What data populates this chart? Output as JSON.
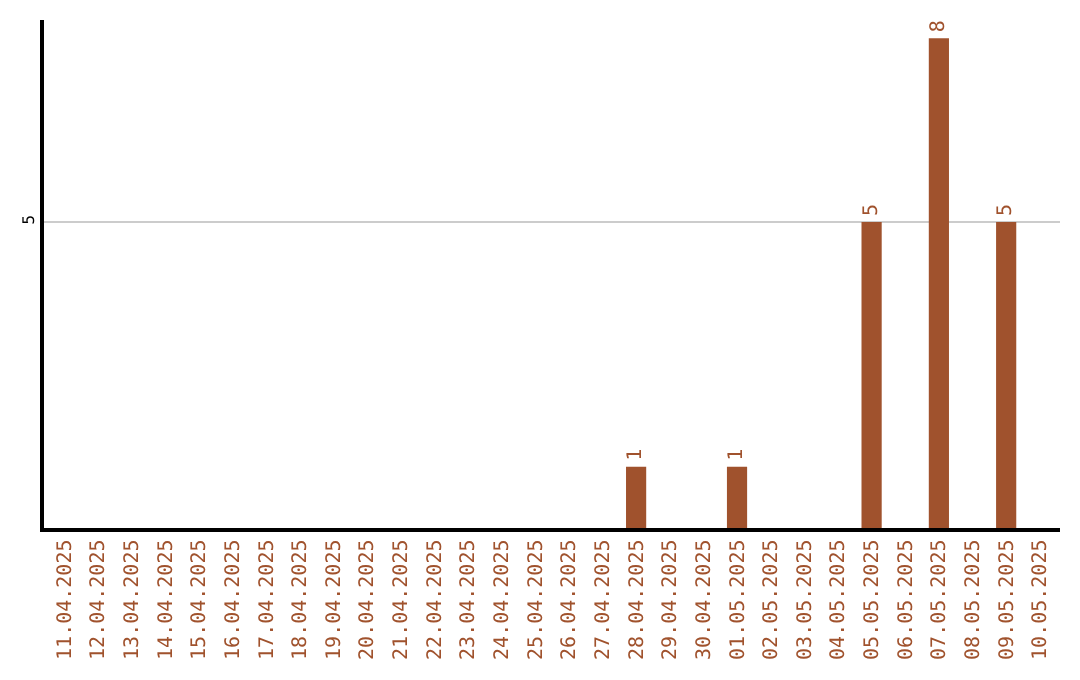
{
  "chart_data": {
    "type": "bar",
    "categories": [
      "11.04.2025",
      "12.04.2025",
      "13.04.2025",
      "14.04.2025",
      "15.04.2025",
      "16.04.2025",
      "17.04.2025",
      "18.04.2025",
      "19.04.2025",
      "20.04.2025",
      "21.04.2025",
      "22.04.2025",
      "23.04.2025",
      "24.04.2025",
      "25.04.2025",
      "26.04.2025",
      "27.04.2025",
      "28.04.2025",
      "29.04.2025",
      "30.04.2025",
      "01.05.2025",
      "02.05.2025",
      "03.05.2025",
      "04.05.2025",
      "05.05.2025",
      "06.05.2025",
      "07.05.2025",
      "08.05.2025",
      "09.05.2025",
      "10.05.2025"
    ],
    "values": [
      null,
      null,
      null,
      null,
      null,
      null,
      null,
      null,
      null,
      null,
      null,
      null,
      null,
      null,
      null,
      null,
      null,
      1,
      null,
      null,
      1,
      null,
      null,
      null,
      5,
      null,
      8,
      null,
      5,
      null
    ],
    "data_labels": true,
    "color": "#a0522d",
    "ylim": [
      0,
      8.3
    ],
    "yticks": [
      5
    ],
    "grid": "y",
    "legend": false
  }
}
